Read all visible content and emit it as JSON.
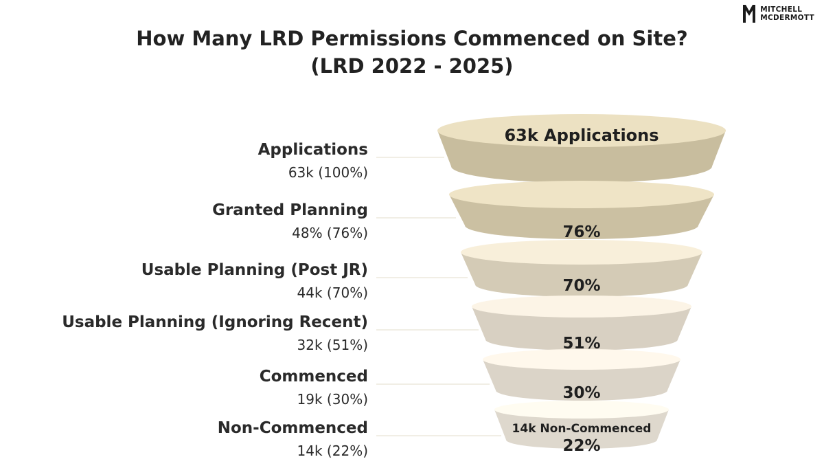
{
  "brand": {
    "line1": "MITCHELL",
    "line2": "MCDERMOTT"
  },
  "title": {
    "line1": "How Many LRD Permissions Commenced on Site?",
    "line2": "(LRD 2022 - 2025)"
  },
  "colors": {
    "funnel": [
      "#d6cbac",
      "#d9ceb0",
      "#e2d9c4",
      "#e6ded0",
      "#e9e2d6",
      "#ece6db"
    ],
    "connector": "#e3dccb"
  },
  "chart_data": {
    "type": "funnel",
    "stages": [
      {
        "name": "Applications",
        "value_label": "63k (100%)",
        "segment_label": "63k Applications",
        "segment_sublabel": "",
        "percent": 100
      },
      {
        "name": "Granted Planning",
        "value_label": "48% (76%)",
        "segment_label": "76%",
        "segment_sublabel": "",
        "percent": 76
      },
      {
        "name": "Usable Planning (Post JR)",
        "value_label": "44k (70%)",
        "segment_label": "70%",
        "segment_sublabel": "",
        "percent": 70
      },
      {
        "name": "Usable Planning (Ignoring Recent)",
        "value_label": "32k (51%)",
        "segment_label": "51%",
        "segment_sublabel": "",
        "percent": 51
      },
      {
        "name": "Commenced",
        "value_label": "19k (30%)",
        "segment_label": "30%",
        "segment_sublabel": "",
        "percent": 30
      },
      {
        "name": "Non-Commenced",
        "value_label": "14k (22%)",
        "segment_label": "22%",
        "segment_sublabel": "14k Non-Commenced",
        "percent": 22
      }
    ]
  }
}
